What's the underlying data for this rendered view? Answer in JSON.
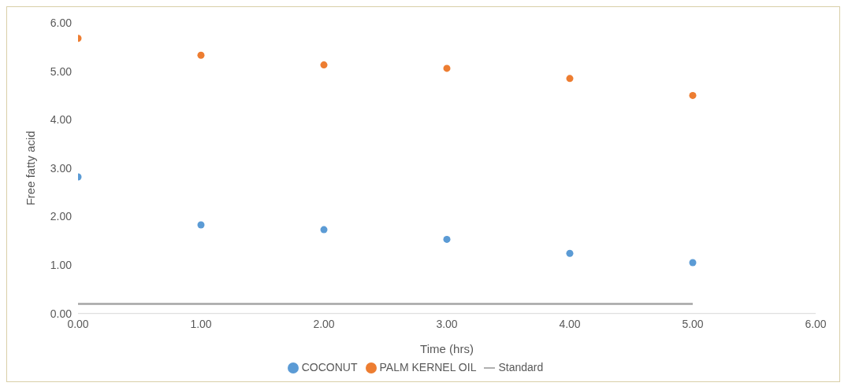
{
  "chart_data": {
    "type": "scatter",
    "xlabel": "Time (hrs)",
    "ylabel": "Free fatty acid",
    "xlim": [
      0,
      6
    ],
    "ylim": [
      0,
      6
    ],
    "xticks": [
      {
        "value": 0,
        "label": "0.00"
      },
      {
        "value": 1,
        "label": "1.00"
      },
      {
        "value": 2,
        "label": "2.00"
      },
      {
        "value": 3,
        "label": "3.00"
      },
      {
        "value": 4,
        "label": "4.00"
      },
      {
        "value": 5,
        "label": "5.00"
      },
      {
        "value": 6,
        "label": "6.00"
      }
    ],
    "yticks": [
      {
        "value": 0,
        "label": "0.00"
      },
      {
        "value": 1,
        "label": "1.00"
      },
      {
        "value": 2,
        "label": "2.00"
      },
      {
        "value": 3,
        "label": "3.00"
      },
      {
        "value": 4,
        "label": "4.00"
      },
      {
        "value": 5,
        "label": "5.00"
      },
      {
        "value": 6,
        "label": "6.00"
      }
    ],
    "grid": false,
    "legend": "bottom",
    "series": [
      {
        "name": "COCONUT",
        "marker": "circle",
        "color": "#5b9bd5",
        "x": [
          0,
          1,
          2,
          3,
          4,
          5
        ],
        "values": [
          2.82,
          1.83,
          1.73,
          1.53,
          1.24,
          1.05
        ]
      },
      {
        "name": "PALM KERNEL OIL",
        "marker": "circle",
        "color": "#ed7d31",
        "x": [
          0,
          1,
          2,
          3,
          4,
          5
        ],
        "values": [
          5.68,
          5.33,
          5.13,
          5.06,
          4.85,
          4.5
        ]
      },
      {
        "name": "Standard",
        "type": "line",
        "color": "#a5a5a5",
        "x": [
          0,
          5
        ],
        "values": [
          0.2,
          0.2
        ],
        "line_style": "solid"
      }
    ]
  }
}
